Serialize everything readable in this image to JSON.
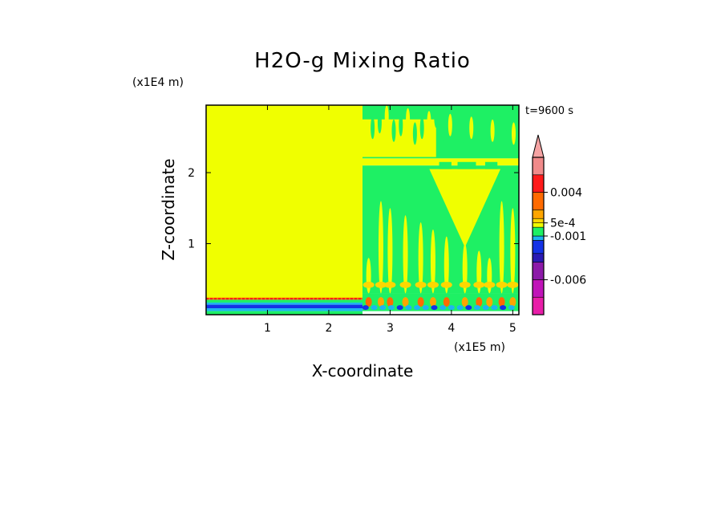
{
  "chart_data": {
    "type": "heatmap",
    "title": "H2O-g Mixing Ratio",
    "xlabel": "X-coordinate",
    "ylabel": "Z-coordinate",
    "x_unit": "(x1E5 m)",
    "y_unit": "(x1E4 m)",
    "time_label": "t=9600 s",
    "xlim": [
      0,
      5.1
    ],
    "ylim": [
      0,
      2.95
    ],
    "x_ticks": [
      "1",
      "2",
      "3",
      "4",
      "5"
    ],
    "y_ticks": [
      "1",
      "2"
    ],
    "x_tick_values": [
      1,
      2,
      3,
      4,
      5
    ],
    "y_tick_values": [
      1,
      2
    ],
    "colorbar": {
      "min": -0.01,
      "max": 0.008,
      "extend": "max",
      "tick_labels": [
        "0.004",
        "5e-4",
        "-0.001",
        "-0.006"
      ],
      "tick_values": [
        0.004,
        0.0005,
        -0.001,
        -0.006
      ],
      "levels": [
        {
          "from": -0.01,
          "to": -0.008,
          "color": "#e81ea8"
        },
        {
          "from": -0.008,
          "to": -0.006,
          "color": "#c014b8"
        },
        {
          "from": -0.006,
          "to": -0.004,
          "color": "#8c1aa8"
        },
        {
          "from": -0.004,
          "to": -0.003,
          "color": "#2a1ab4"
        },
        {
          "from": -0.003,
          "to": -0.0015,
          "color": "#1432e6"
        },
        {
          "from": -0.0015,
          "to": -0.001,
          "color": "#1eb4f0"
        },
        {
          "from": -0.001,
          "to": 0.0,
          "color": "#1ef064"
        },
        {
          "from": 0.0,
          "to": 0.0005,
          "color": "#f0ff00"
        },
        {
          "from": 0.0005,
          "to": 0.001,
          "color": "#ffd700"
        },
        {
          "from": 0.001,
          "to": 0.002,
          "color": "#ffa500"
        },
        {
          "from": 0.002,
          "to": 0.004,
          "color": "#ff6a00"
        },
        {
          "from": 0.004,
          "to": 0.006,
          "color": "#ff1a1a"
        },
        {
          "from": 0.006,
          "to": 0.008,
          "color": "#f08a8a"
        }
      ],
      "extend_color": "#f5a3a3"
    },
    "field_regions": [
      {
        "name": "left-domain",
        "x": [
          0,
          2.55
        ],
        "z": [
          0.22,
          2.95
        ],
        "color": "#f0ff00"
      },
      {
        "name": "right-upper",
        "x": [
          2.55,
          5.1
        ],
        "z": [
          2.2,
          2.95
        ],
        "color": "#1ef064"
      },
      {
        "name": "right-band",
        "x": [
          2.55,
          5.1
        ],
        "z": [
          2.1,
          2.2
        ],
        "color": "#f0ff00"
      },
      {
        "name": "right-middle",
        "x": [
          2.55,
          5.1
        ],
        "z": [
          0.3,
          2.1
        ],
        "color": "#1ef064"
      },
      {
        "name": "right-upper-yellow",
        "x": [
          2.55,
          3.75
        ],
        "z": [
          2.22,
          2.75
        ],
        "color": "#f0ff00"
      },
      {
        "name": "right-surface",
        "x": [
          2.55,
          5.1
        ],
        "z": [
          0.05,
          0.3
        ],
        "color": "#1ef064"
      }
    ],
    "surface_layers": [
      {
        "x": [
          0,
          2.55
        ],
        "z": [
          0.21,
          0.24
        ],
        "color": "#ff6a00"
      },
      {
        "x": [
          0,
          2.55
        ],
        "z": [
          0.17,
          0.21
        ],
        "color": "#1ef064"
      },
      {
        "x": [
          0,
          2.55
        ],
        "z": [
          0.14,
          0.17
        ],
        "color": "#1eb4f0"
      },
      {
        "x": [
          0,
          2.55
        ],
        "z": [
          0.09,
          0.14
        ],
        "color": "#1432e6"
      },
      {
        "x": [
          0,
          2.55
        ],
        "z": [
          0.05,
          0.09
        ],
        "color": "#1eb4f0"
      },
      {
        "x": [
          0,
          2.55
        ],
        "z": [
          0.0,
          0.05
        ],
        "color": "#1ef064"
      }
    ],
    "plumes": [
      2.65,
      2.85,
      3.0,
      3.25,
      3.5,
      3.7,
      3.92,
      4.22,
      4.45,
      4.62,
      4.82,
      5.0
    ],
    "v_shape": {
      "x_center": 4.22,
      "half_width_top": 0.58,
      "z_top": 2.05,
      "z_bottom": 0.95
    }
  }
}
